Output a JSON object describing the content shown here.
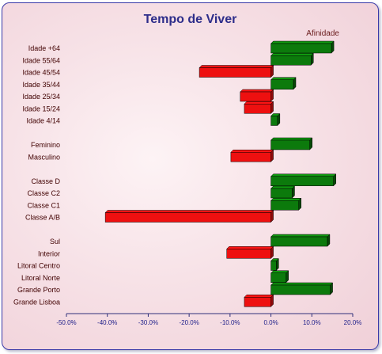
{
  "chart_data": {
    "type": "bar",
    "orientation": "horizontal",
    "title": "Tempo de Viver",
    "legend": {
      "entries": [
        "Afinidade"
      ],
      "position": "top-right"
    },
    "xlim": [
      -50,
      20
    ],
    "x_ticks": [
      "-50.0%",
      "-40.0%",
      "-30.0%",
      "-20.0%",
      "-10.0%",
      "0.0%",
      "10.0%",
      "20.0%"
    ],
    "grid": false,
    "positive_color": "#0c7a0c",
    "negative_color": "#ee1010",
    "groups": [
      {
        "categories": [
          "Idade +64",
          "Idade 55/64",
          "Idade 45/54",
          "Idade 35/44",
          "Idade 25/34",
          "Idade 15/24",
          "Idade 4/14"
        ],
        "values": [
          14.8,
          9.8,
          -17.5,
          5.5,
          -7.5,
          -6.5,
          1.6
        ]
      },
      {
        "categories": [
          "Feminino",
          "Masculino"
        ],
        "values": [
          9.5,
          -9.8
        ]
      },
      {
        "categories": [
          "Classe D",
          "Classe C2",
          "Classe C1",
          "Classe A/B"
        ],
        "values": [
          15.3,
          5.2,
          6.8,
          -40.5
        ]
      },
      {
        "categories": [
          "Sul",
          "Interior",
          "Litoral Centro",
          "Litoral Norte",
          "Grande Porto",
          "Grande Lisboa"
        ],
        "values": [
          13.8,
          -10.8,
          1.3,
          3.7,
          14.5,
          -6.5
        ]
      }
    ]
  }
}
